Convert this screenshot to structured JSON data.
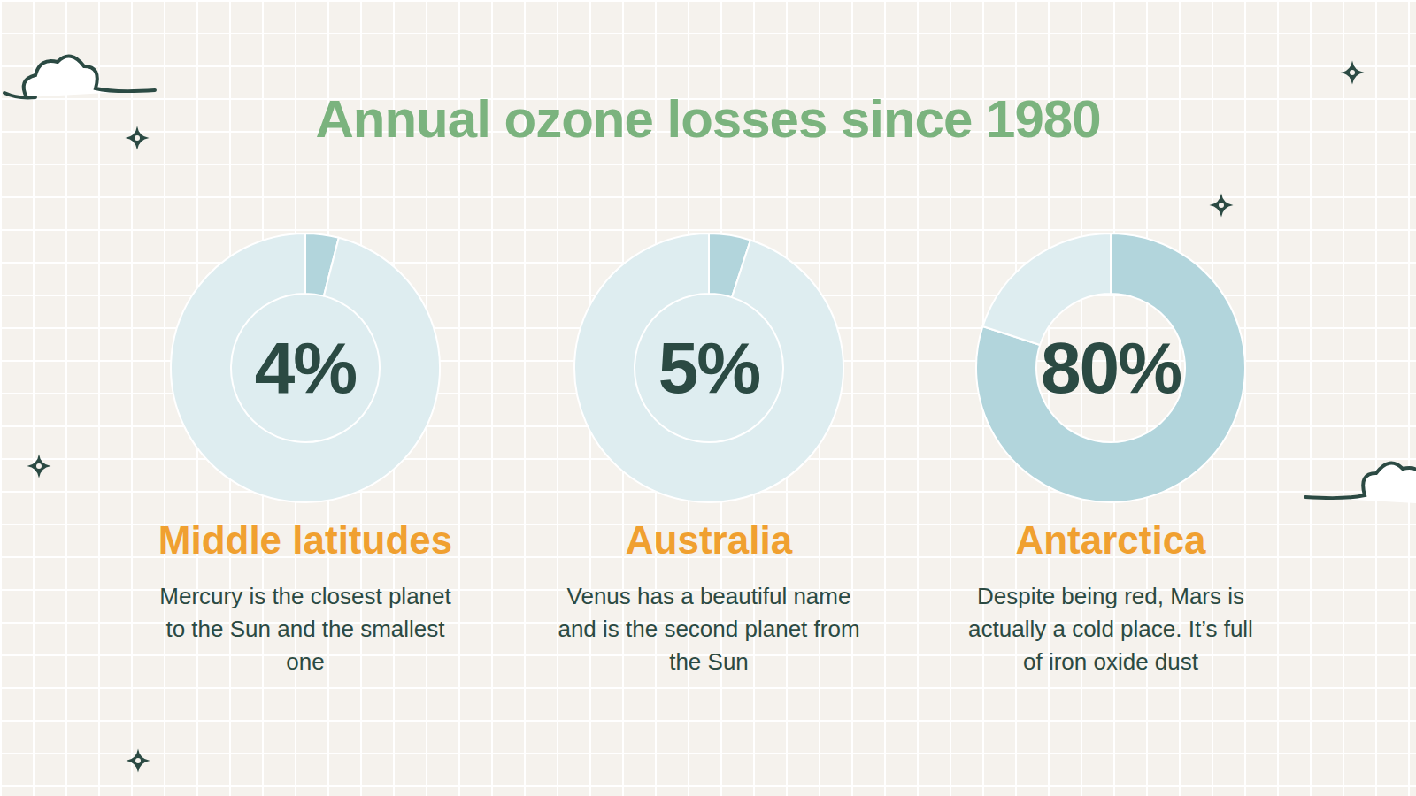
{
  "title": "Annual ozone losses since 1980",
  "chart_data": [
    {
      "type": "pie",
      "title": "Middle latitudes",
      "subtitle": "Mercury is the closest planet to the Sun and the smallest one",
      "values": [
        4
      ],
      "value_labels": [
        "4%"
      ],
      "data_labels": true,
      "colors": [
        "#b2d5dc",
        "#deedf0"
      ]
    },
    {
      "type": "pie",
      "title": "Australia",
      "subtitle": "Venus has a beautiful name and is the second planet from the Sun",
      "values": [
        5
      ],
      "value_labels": [
        "5%"
      ],
      "data_labels": true,
      "colors": [
        "#b2d5dc",
        "#deedf0"
      ]
    },
    {
      "type": "donut",
      "title": "Antarctica",
      "subtitle": "Despite being red, Mars is actually a cold place. It’s full of iron oxide dust",
      "values": [
        80
      ],
      "value_labels": [
        "80%"
      ],
      "data_labels": true,
      "colors": [
        "#b2d5dc",
        "#deedf0"
      ]
    }
  ]
}
